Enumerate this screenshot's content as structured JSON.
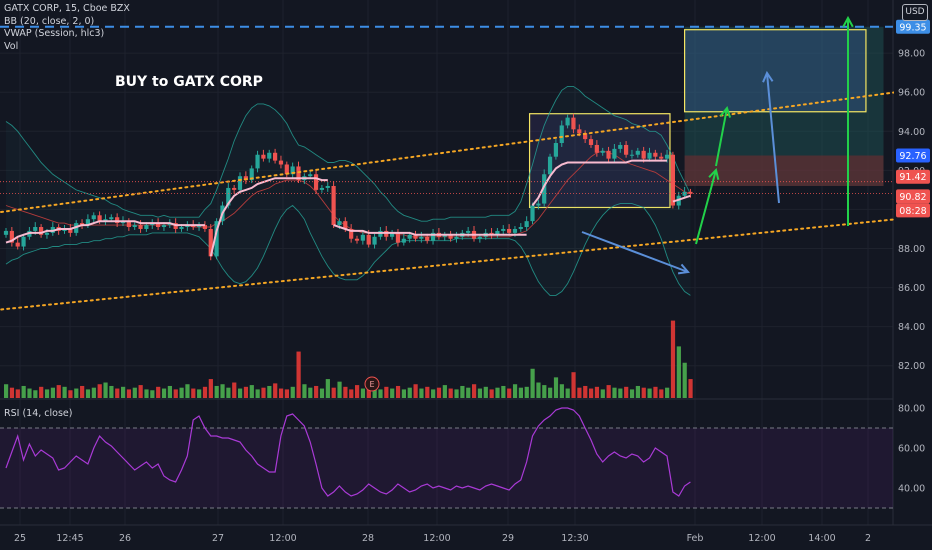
{
  "legend": {
    "symbol": "GATX CORP, 15, Cboe BZX",
    "bb": "BB (20, close, 2, 0)",
    "vwap": "VWAP (Session, hlc3)",
    "vol": "Vol"
  },
  "rsi_legend": "RSI (14, close)",
  "annotation": "BUY to GATX CORP",
  "currency_button": "USD",
  "colors": {
    "background": "#131722",
    "up": "#26a69a",
    "down": "#ef5350",
    "vol_up": "#4caf50",
    "vol_down": "#e53935",
    "bb_band": "#26a69a",
    "bb_basis": "#b33b3b",
    "vwap": "#f8bbd0",
    "trend": "#f5a623",
    "rsi": "#a93ad6",
    "green_arrow": "#22d14a",
    "blue_arrow": "#5b8fd8",
    "box": "#f5e663",
    "target_line": "#3d8ee6"
  },
  "chart_data": {
    "type": "candlestick",
    "price_axis_ticks": [
      "98.00",
      "96.00",
      "94.00",
      "92.00",
      "90.00",
      "88.00",
      "86.00",
      "84.00",
      "82.00"
    ],
    "price_axis_range": [
      80.5,
      99.8
    ],
    "time_axis_ticks": [
      "25",
      "12:45",
      "26",
      "27",
      "12:00",
      "28",
      "12:00",
      "29",
      "12:30",
      "Feb",
      "12:00",
      "14:00",
      "2"
    ],
    "price_labels": [
      {
        "text": "99.35",
        "kind": "target",
        "color": "#3d8ee6"
      },
      {
        "text": "92.76",
        "kind": "stop",
        "color": "#2962ff"
      },
      {
        "text": "91.42",
        "kind": "high",
        "color": "#ef5350"
      },
      {
        "text": "90.82",
        "kind": "last",
        "color": "#ef5350"
      },
      {
        "text": "08:28",
        "kind": "countdown",
        "color": "#ef5350"
      }
    ],
    "target_price": 99.35,
    "rsi_axis_ticks": [
      "80.00",
      "60.00",
      "40.00"
    ],
    "rsi_range": [
      24,
      84
    ],
    "rsi_bands": [
      70,
      30
    ],
    "close": [
      88.9,
      88.3,
      88.1,
      88.6,
      88.9,
      89.1,
      88.7,
      88.8,
      89.1,
      88.9,
      89.0,
      88.8,
      89.3,
      89.2,
      89.5,
      89.7,
      89.4,
      89.5,
      89.6,
      89.3,
      89.4,
      89.1,
      89.2,
      89.0,
      89.2,
      89.3,
      89.1,
      89.2,
      89.3,
      89.0,
      89.1,
      89.2,
      89.1,
      89.2,
      89.0,
      87.6,
      89.4,
      90.2,
      91.1,
      91.0,
      91.7,
      91.5,
      92.1,
      92.8,
      92.6,
      92.9,
      92.5,
      92.3,
      91.8,
      92.2,
      91.5,
      91.7,
      91.8,
      91.0,
      91.1,
      91.2,
      89.2,
      89.4,
      89.0,
      88.5,
      88.4,
      88.7,
      88.2,
      88.6,
      88.9,
      88.6,
      88.8,
      88.3,
      88.5,
      88.7,
      88.5,
      88.6,
      88.4,
      88.8,
      88.6,
      88.7,
      88.5,
      88.6,
      88.8,
      88.9,
      88.5,
      88.6,
      88.8,
      88.7,
      88.9,
      89.0,
      88.8,
      89.0,
      89.1,
      89.4,
      90.2,
      90.3,
      91.8,
      92.7,
      93.4,
      94.3,
      94.7,
      94.1,
      93.9,
      93.6,
      93.3,
      92.9,
      93.0,
      92.6,
      93.1,
      93.3,
      92.8,
      92.8,
      93.0,
      92.6,
      92.9,
      92.7,
      92.6,
      92.8,
      90.2,
      90.7,
      90.9,
      90.8
    ],
    "volume": [
      1.6,
      1.2,
      1.0,
      1.4,
      1.1,
      0.9,
      1.3,
      1.0,
      1.2,
      1.5,
      1.3,
      0.9,
      1.1,
      1.4,
      1.0,
      1.2,
      1.6,
      1.8,
      1.4,
      1.1,
      1.3,
      1.0,
      1.2,
      1.5,
      1.0,
      0.9,
      1.3,
      1.1,
      1.4,
      1.0,
      1.2,
      1.6,
      1.1,
      1.0,
      1.3,
      2.2,
      1.4,
      1.6,
      1.2,
      1.8,
      1.1,
      1.3,
      1.5,
      1.0,
      1.2,
      1.4,
      1.7,
      1.1,
      1.0,
      1.3,
      5.4,
      1.6,
      1.2,
      1.4,
      1.1,
      2.2,
      1.2,
      1.9,
      1.3,
      1.0,
      1.5,
      1.1,
      1.8,
      1.2,
      1.0,
      1.3,
      1.1,
      1.4,
      1.0,
      1.2,
      1.6,
      1.1,
      1.3,
      1.0,
      1.2,
      1.5,
      1.1,
      1.0,
      1.4,
      1.2,
      1.6,
      1.1,
      1.3,
      1.0,
      1.2,
      1.4,
      1.1,
      1.6,
      1.2,
      1.3,
      3.4,
      1.8,
      1.5,
      1.2,
      2.4,
      1.6,
      1.1,
      3.0,
      1.2,
      1.4,
      1.1,
      1.3,
      1.0,
      1.5,
      1.2,
      1.1,
      1.3,
      1.0,
      1.4,
      1.2,
      1.1,
      1.3,
      1.0,
      1.2,
      9.0,
      6.0,
      4.1,
      2.2
    ],
    "rsi": [
      50,
      58,
      66,
      54,
      62,
      56,
      59,
      57,
      55,
      49,
      50,
      53,
      56,
      54,
      52,
      60,
      66,
      63,
      61,
      58,
      55,
      52,
      49,
      51,
      53,
      50,
      52,
      46,
      44,
      43,
      49,
      56,
      74,
      76,
      70,
      66,
      66,
      65,
      65,
      64,
      63,
      59,
      56,
      52,
      50,
      48,
      48,
      66,
      76,
      77,
      74,
      71,
      63,
      52,
      40,
      36,
      38,
      41,
      38,
      36,
      37,
      39,
      42,
      40,
      38,
      37,
      39,
      42,
      40,
      38,
      39,
      41,
      42,
      40,
      41,
      40,
      39,
      41,
      40,
      41,
      40,
      39,
      41,
      42,
      41,
      40,
      39,
      42,
      44,
      53,
      66,
      71,
      74,
      76,
      79,
      80,
      80,
      79,
      76,
      70,
      64,
      57,
      53,
      56,
      58,
      56,
      55,
      57,
      56,
      53,
      55,
      60,
      58,
      56,
      38,
      36,
      41,
      43
    ],
    "bb_upper": [
      94.5,
      94.3,
      94.0,
      93.6,
      93.2,
      92.8,
      92.4,
      92.1,
      91.8,
      91.6,
      91.4,
      91.2,
      91.0,
      90.9,
      90.8,
      90.7,
      90.6,
      90.5,
      90.3,
      90.2,
      90.0,
      89.9,
      89.8,
      89.7,
      89.7,
      89.7,
      89.6,
      89.7,
      89.6,
      89.6,
      89.6,
      89.6,
      89.6,
      89.6,
      90.0,
      90.3,
      91.0,
      91.8,
      92.6,
      93.5,
      94.2,
      94.8,
      95.2,
      95.4,
      95.4,
      95.3,
      95.1,
      94.8,
      94.4,
      93.8,
      93.3,
      93.2,
      93.0,
      92.8,
      92.6,
      92.4,
      92.4,
      92.5,
      92.5,
      92.4,
      92.2,
      91.9,
      91.6,
      91.3,
      90.9,
      90.6,
      90.2,
      89.9,
      89.7,
      89.6,
      89.5,
      89.4,
      89.4,
      89.5,
      89.5,
      89.5,
      89.6,
      89.6,
      89.6,
      89.6,
      89.6,
      89.6,
      89.6,
      89.7,
      89.7,
      89.7,
      89.7,
      89.9,
      90.4,
      91.3,
      92.3,
      93.4,
      94.3,
      95.0,
      95.6,
      96.1,
      96.3,
      96.3,
      96.1,
      95.8,
      95.6,
      95.4,
      95.2,
      95.0,
      94.8,
      94.7,
      94.6,
      94.4,
      94.3,
      94.2,
      94.0,
      94.0,
      93.8,
      93.3,
      92.7,
      92.0,
      91.4,
      90.8
    ],
    "bb_lower": [
      87.2,
      87.4,
      87.5,
      87.7,
      87.8,
      87.9,
      88.0,
      88.0,
      88.1,
      88.1,
      88.2,
      88.2,
      88.2,
      88.3,
      88.3,
      88.4,
      88.4,
      88.5,
      88.5,
      88.6,
      88.6,
      88.7,
      88.7,
      88.7,
      88.7,
      88.8,
      88.8,
      88.8,
      88.8,
      88.8,
      88.8,
      88.8,
      88.7,
      88.6,
      88.3,
      88.0,
      87.5,
      87.0,
      86.6,
      86.3,
      86.2,
      86.3,
      86.6,
      87.0,
      87.6,
      88.3,
      89.0,
      89.6,
      90.0,
      90.2,
      89.9,
      89.5,
      88.8,
      88.2,
      87.6,
      87.1,
      86.7,
      86.5,
      86.4,
      86.4,
      86.4,
      86.6,
      86.9,
      87.3,
      87.6,
      87.9,
      88.2,
      88.3,
      88.4,
      88.4,
      88.4,
      88.4,
      88.4,
      88.4,
      88.4,
      88.4,
      88.4,
      88.5,
      88.5,
      88.5,
      88.5,
      88.5,
      88.5,
      88.5,
      88.5,
      88.5,
      88.5,
      88.4,
      88.1,
      87.6,
      86.9,
      86.3,
      85.9,
      85.6,
      85.6,
      85.8,
      86.2,
      86.8,
      87.5,
      88.2,
      88.8,
      89.3,
      89.7,
      90.0,
      90.2,
      90.3,
      90.3,
      90.3,
      90.2,
      90.1,
      89.7,
      89.2,
      88.5,
      87.6,
      86.8,
      86.2,
      85.8,
      85.6
    ],
    "bb_basis": [
      90.2,
      90.1,
      90.0,
      89.9,
      89.8,
      89.7,
      89.6,
      89.5,
      89.4,
      89.3,
      89.3,
      89.2,
      89.2,
      89.2,
      89.2,
      89.2,
      89.2,
      89.2,
      89.2,
      89.2,
      89.2,
      89.2,
      89.2,
      89.2,
      89.2,
      89.2,
      89.2,
      89.2,
      89.2,
      89.2,
      89.2,
      89.2,
      89.1,
      89.1,
      89.1,
      89.1,
      89.3,
      89.4,
      89.6,
      89.8,
      90.1,
      90.4,
      90.7,
      90.9,
      91.0,
      91.1,
      91.3,
      91.4,
      91.5,
      91.5,
      91.5,
      91.4,
      91.2,
      90.9,
      90.5,
      90.1,
      89.7,
      89.4,
      89.2,
      89.0,
      88.9,
      88.8,
      88.8,
      88.8,
      88.8,
      88.8,
      88.8,
      88.7,
      88.7,
      88.6,
      88.6,
      88.6,
      88.6,
      88.6,
      88.6,
      88.6,
      88.6,
      88.6,
      88.6,
      88.6,
      88.6,
      88.6,
      88.6,
      88.6,
      88.6,
      88.6,
      88.6,
      88.7,
      88.8,
      88.9,
      89.2,
      89.5,
      89.9,
      90.3,
      90.7,
      91.1,
      91.5,
      91.8,
      92.1,
      92.4,
      92.7,
      92.9,
      93.0,
      92.9,
      92.8,
      92.6,
      92.4,
      92.3,
      92.2,
      92.1,
      92.0,
      91.9,
      91.7,
      91.5,
      91.3,
      91.1,
      90.9,
      90.8
    ],
    "vwap_segments": [
      {
        "start": 0,
        "values": [
          88.3,
          88.4,
          88.6,
          88.7,
          88.8,
          88.8,
          88.8,
          88.9,
          88.9,
          89.0,
          89.0,
          89.0,
          89.1,
          89.2,
          89.2,
          89.3,
          89.4,
          89.4,
          89.4,
          89.4,
          89.4,
          89.4,
          89.4,
          89.3,
          89.3,
          89.3,
          89.3,
          89.3,
          89.3,
          89.2,
          89.2,
          89.2,
          89.2,
          89.2,
          89.2
        ]
      },
      {
        "start": 35,
        "values": [
          87.6,
          88.9,
          89.8,
          90.3,
          90.7,
          90.9,
          91.0,
          91.1,
          91.3,
          91.4,
          91.5,
          91.6,
          91.6,
          91.6,
          91.6,
          91.6,
          91.6,
          91.6,
          91.6,
          91.5,
          91.5
        ]
      },
      {
        "start": 56,
        "values": [
          89.2,
          89.1,
          89.0,
          88.9,
          88.9,
          88.9,
          88.8,
          88.8,
          88.8,
          88.8,
          88.8,
          88.8,
          88.8,
          88.8,
          88.7,
          88.7,
          88.7,
          88.7,
          88.7,
          88.7,
          88.7,
          88.7,
          88.7,
          88.7,
          88.7,
          88.7,
          88.7,
          88.7,
          88.7,
          88.7,
          88.7,
          88.7,
          88.7,
          88.7
        ]
      },
      {
        "start": 90,
        "values": [
          90.2,
          90.6,
          91.2,
          91.7,
          92.1,
          92.3,
          92.4,
          92.4,
          92.4,
          92.4,
          92.4,
          92.4,
          92.4,
          92.4,
          92.4,
          92.4,
          92.4,
          92.5,
          92.5,
          92.5,
          92.5,
          92.5,
          92.5,
          92.5
        ]
      },
      {
        "start": 114,
        "values": [
          90.4,
          90.5,
          90.6,
          90.7
        ]
      }
    ],
    "trend_lines": [
      {
        "name": "channel-upper",
        "from": {
          "bar": -10,
          "price": 89.5
        },
        "to": {
          "bar": 182,
          "price": 97.2
        }
      },
      {
        "name": "channel-lower",
        "from": {
          "bar": -10,
          "price": 84.6
        },
        "to": {
          "bar": 182,
          "price": 90.4
        }
      }
    ],
    "rectangles": [
      {
        "name": "consolidation-box",
        "from": {
          "bar": 89.5,
          "price": 94.9
        },
        "to": {
          "bar": 113.5,
          "price": 90.1
        },
        "fill": "#5c4fa8",
        "fill_opacity": 0.18
      },
      {
        "name": "target-box",
        "from": {
          "bar": 116,
          "price": 99.2
        },
        "to": {
          "bar": 147,
          "price": 95.0
        },
        "fill": "#4a6fc4",
        "fill_opacity": 0.25
      }
    ],
    "position_tool": {
      "from_bar": 116,
      "to_bar": 150,
      "entry": 91.2,
      "stop": 92.76,
      "target": 99.35
    }
  }
}
